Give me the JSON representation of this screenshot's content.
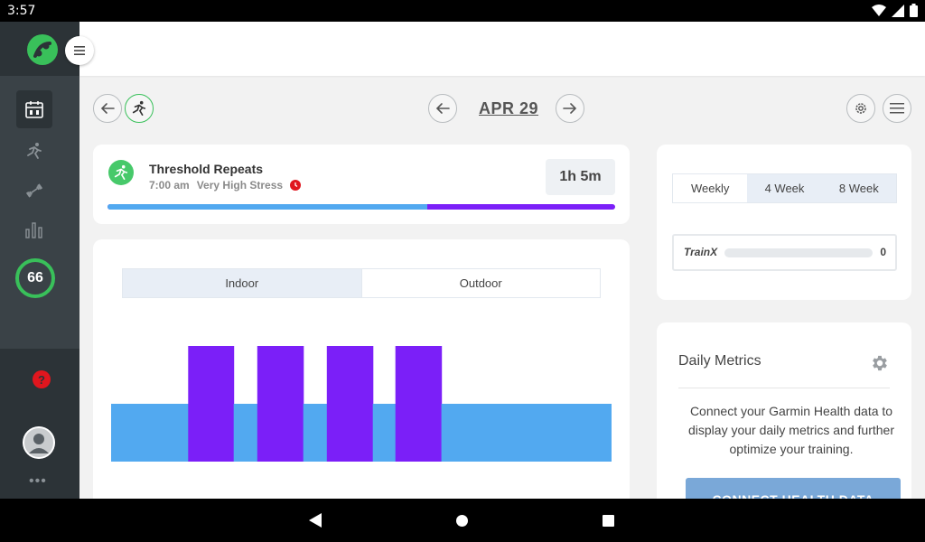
{
  "status_bar": {
    "time": "3:57"
  },
  "sidebar": {
    "score": "66",
    "help_label": "?",
    "more_label": "•••",
    "items": [
      {
        "name": "calendar",
        "active": true
      },
      {
        "name": "workouts",
        "active": false
      },
      {
        "name": "training",
        "active": false
      },
      {
        "name": "analytics",
        "active": false
      }
    ]
  },
  "date_nav": {
    "date": "APR 29"
  },
  "workout": {
    "title": "Threshold Repeats",
    "time": "7:00 am",
    "stress": "Very High Stress",
    "duration": "1h 5m",
    "progress_fraction": 0.63
  },
  "chart_toggle": {
    "indoor": "Indoor",
    "outdoor": "Outdoor",
    "selected": "Indoor"
  },
  "chart_data": {
    "type": "bar",
    "description_segments": [
      {
        "start": 0.0,
        "end": 0.154,
        "level": 1
      },
      {
        "start": 0.154,
        "end": 0.245,
        "level": 2
      },
      {
        "start": 0.245,
        "end": 0.292,
        "level": 1
      },
      {
        "start": 0.292,
        "end": 0.384,
        "level": 2
      },
      {
        "start": 0.384,
        "end": 0.431,
        "level": 1
      },
      {
        "start": 0.431,
        "end": 0.523,
        "level": 2
      },
      {
        "start": 0.523,
        "end": 0.568,
        "level": 1
      },
      {
        "start": 0.568,
        "end": 0.66,
        "level": 2
      },
      {
        "start": 0.66,
        "end": 1.0,
        "level": 1
      }
    ],
    "colors": {
      "level1": "#52a9f0",
      "level2": "#7b1ff8"
    }
  },
  "period_toggle": {
    "weekly": "Weekly",
    "four_week": "4 Week",
    "eight_week": "8 Week",
    "selected": "Weekly"
  },
  "trainx": {
    "label": "TrainX",
    "value": "0"
  },
  "daily_metrics": {
    "title": "Daily Metrics",
    "text": "Connect your Garmin Health data to display your daily metrics and further optimize your training.",
    "button_label": "CONNECT HEALTH DATA"
  }
}
